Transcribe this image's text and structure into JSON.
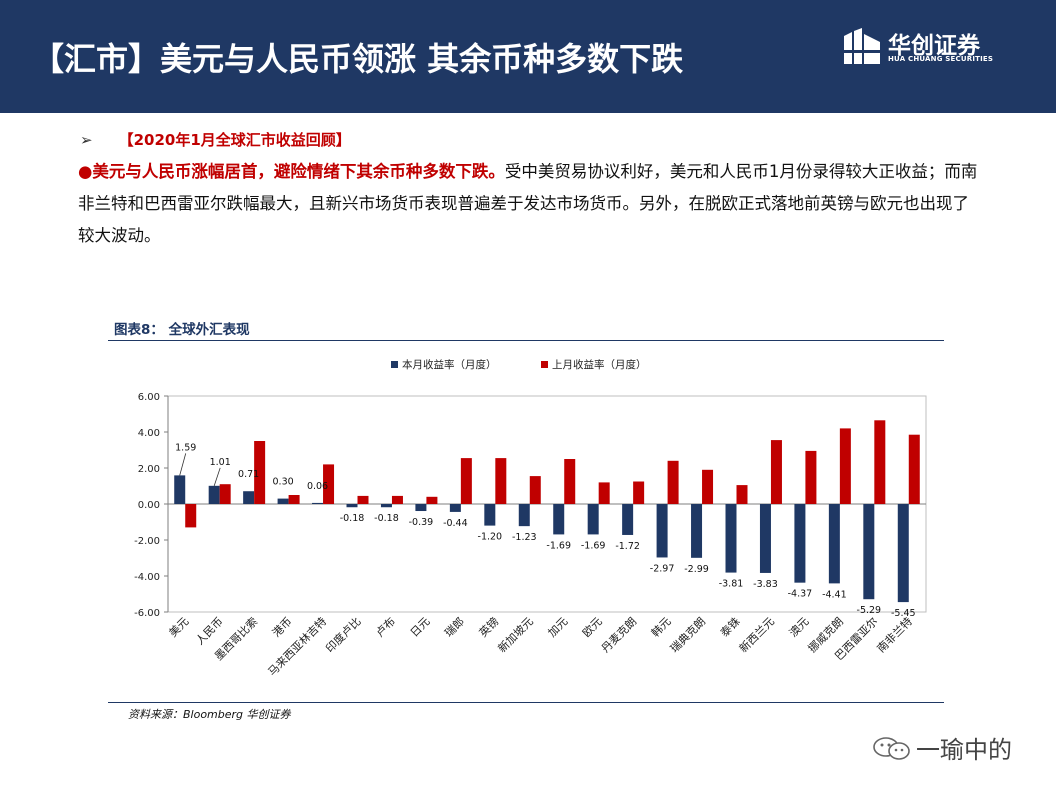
{
  "header": {
    "title": "【汇市】美元与人民币领涨 其余币种多数下跌"
  },
  "logo": {
    "cn": "华创证券",
    "en": "HUA CHUANG SECURITIES",
    "icon": "huachuang-logo-icon"
  },
  "section": {
    "arrow": "➢",
    "heading": "【2020年1月全球汇市收益回顾】",
    "lead": "●美元与人民币涨幅居首，避险情绪下其余币种多数下跌。",
    "body": "受中美贸易协议利好，美元和人民币1月份录得较大正收益；而南非兰特和巴西雷亚尔跌幅最大，且新兴市场货币表现普遍差于发达市场货币。另外，在脱欧正式落地前英镑与欧元也出现了较大波动。"
  },
  "figure": {
    "title": "图表8：  全球外汇表现",
    "source": "资料来源：Bloomberg 华创证券"
  },
  "watermark": {
    "text": "一瑜中的",
    "icon": "wechat-icon"
  },
  "chart_data": {
    "type": "bar",
    "categories": [
      "美元",
      "人民币",
      "墨西哥比索",
      "港币",
      "马来西亚林吉特",
      "印度卢比",
      "卢布",
      "日元",
      "瑞郎",
      "英镑",
      "新加坡元",
      "加元",
      "欧元",
      "丹麦克朗",
      "韩元",
      "瑞典克朗",
      "泰铢",
      "新西兰元",
      "澳元",
      "挪威克朗",
      "巴西雷亚尔",
      "南非兰特"
    ],
    "series": [
      {
        "name": "本月收益率（月度）",
        "color": "#1f3864",
        "values": [
          1.59,
          1.01,
          0.71,
          0.3,
          0.06,
          -0.18,
          -0.18,
          -0.39,
          -0.44,
          -1.2,
          -1.23,
          -1.69,
          -1.69,
          -1.72,
          -2.97,
          -2.99,
          -3.81,
          -3.83,
          -4.37,
          -4.41,
          -5.29,
          -5.45
        ],
        "labels": [
          "1.59",
          "1.01",
          "0.71",
          "0.30",
          "0.06",
          "-0.18",
          "-0.18",
          "-0.39",
          "-0.44",
          "-1.20",
          "-1.23",
          "-1.69",
          "-1.69",
          "-1.72",
          "-2.97",
          "-2.99",
          "-3.81",
          "-3.83",
          "-4.37",
          "-4.41",
          "-5.29",
          "-5.45"
        ]
      },
      {
        "name": "上月收益率（月度）",
        "color": "#c00000",
        "values": [
          -1.3,
          1.1,
          3.5,
          0.5,
          2.2,
          0.45,
          0.45,
          0.4,
          2.55,
          2.55,
          1.55,
          2.5,
          1.2,
          1.25,
          2.4,
          1.9,
          1.05,
          3.55,
          2.95,
          4.2,
          4.65,
          3.85
        ]
      }
    ],
    "yticks": [
      "6.00",
      "4.00",
      "2.00",
      "0.00",
      "-2.00",
      "-4.00",
      "-6.00"
    ],
    "ylim": [
      -6,
      6
    ],
    "legend": "top-center",
    "grid": false
  }
}
